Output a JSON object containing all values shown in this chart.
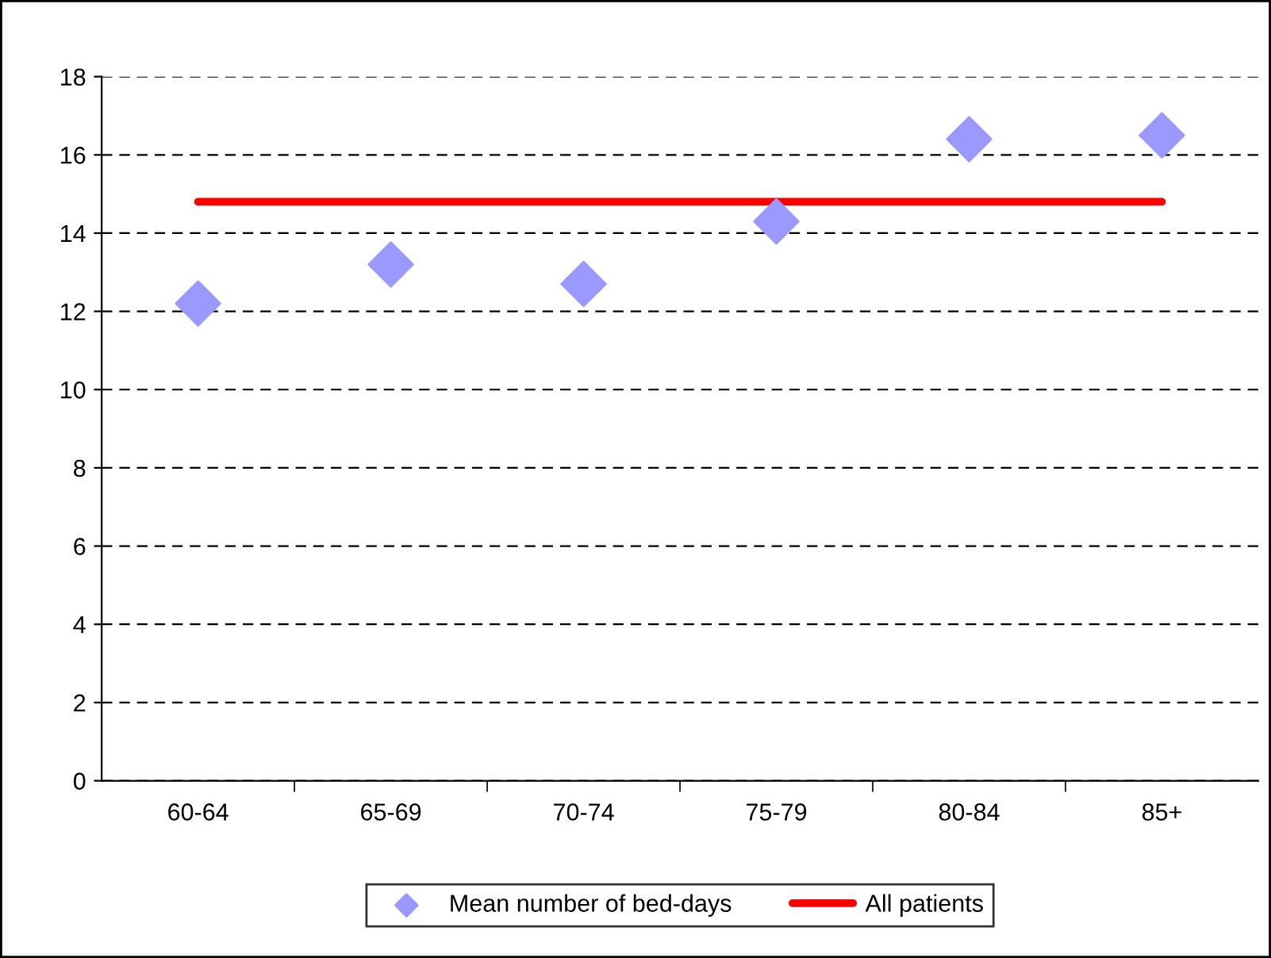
{
  "chart_data": {
    "type": "scatter",
    "categories": [
      "60-64",
      "65-69",
      "70-74",
      "75-79",
      "80-84",
      "85+"
    ],
    "series": [
      {
        "name": "Mean number of bed-days",
        "color": "#9999ff",
        "marker": "diamond",
        "values": [
          12.2,
          13.2,
          12.7,
          14.3,
          16.4,
          16.5
        ]
      },
      {
        "name": "All patients",
        "type": "line",
        "color": "#ff0000",
        "marker": "none",
        "values": [
          14.8,
          14.8,
          14.8,
          14.8,
          14.8,
          14.8
        ]
      }
    ],
    "ylim": [
      0,
      18
    ],
    "yticks": [
      0,
      2,
      4,
      6,
      8,
      10,
      12,
      14,
      16,
      18
    ],
    "grid": "y",
    "legend": "bottom"
  }
}
